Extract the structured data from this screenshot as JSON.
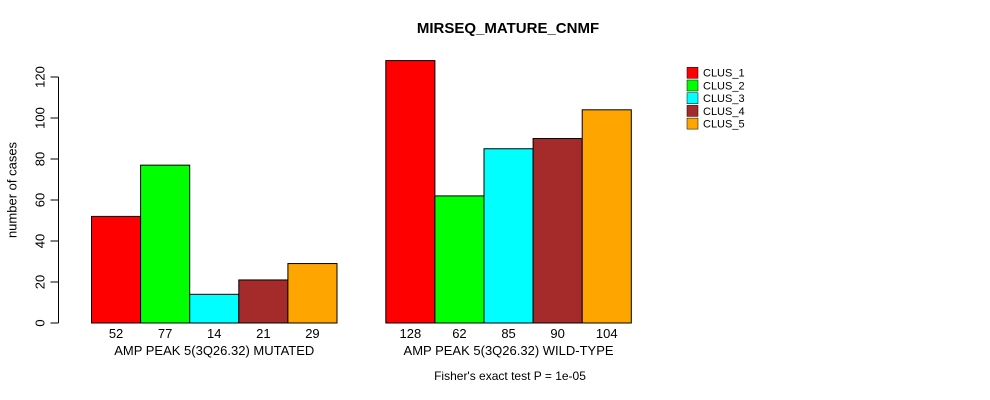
{
  "chart_data": {
    "type": "bar",
    "title": "MIRSEQ_MATURE_CNMF",
    "ylabel": "number of cases",
    "xlabel": "",
    "yticks": [
      0,
      20,
      40,
      60,
      80,
      100,
      120
    ],
    "ylim": [
      0,
      128
    ],
    "grid": false,
    "bar_borders": "#000000",
    "legend_position": "top-right",
    "legend": [
      {
        "name": "CLUS_1",
        "color": "#ff0000"
      },
      {
        "name": "CLUS_2",
        "color": "#00ff00"
      },
      {
        "name": "CLUS_3",
        "color": "#00ffff"
      },
      {
        "name": "CLUS_4",
        "color": "#a52a2a"
      },
      {
        "name": "CLUS_5",
        "color": "#ffa500"
      }
    ],
    "groups": [
      {
        "label": "AMP PEAK  5(3Q26.32) MUTATED",
        "values": [
          52,
          77,
          14,
          21,
          29
        ]
      },
      {
        "label": "AMP PEAK  5(3Q26.32) WILD-TYPE",
        "values": [
          128,
          62,
          85,
          90,
          104
        ]
      }
    ],
    "value_labels_shown": true,
    "annotation": "Fisher's exact test P = 1e-05"
  }
}
